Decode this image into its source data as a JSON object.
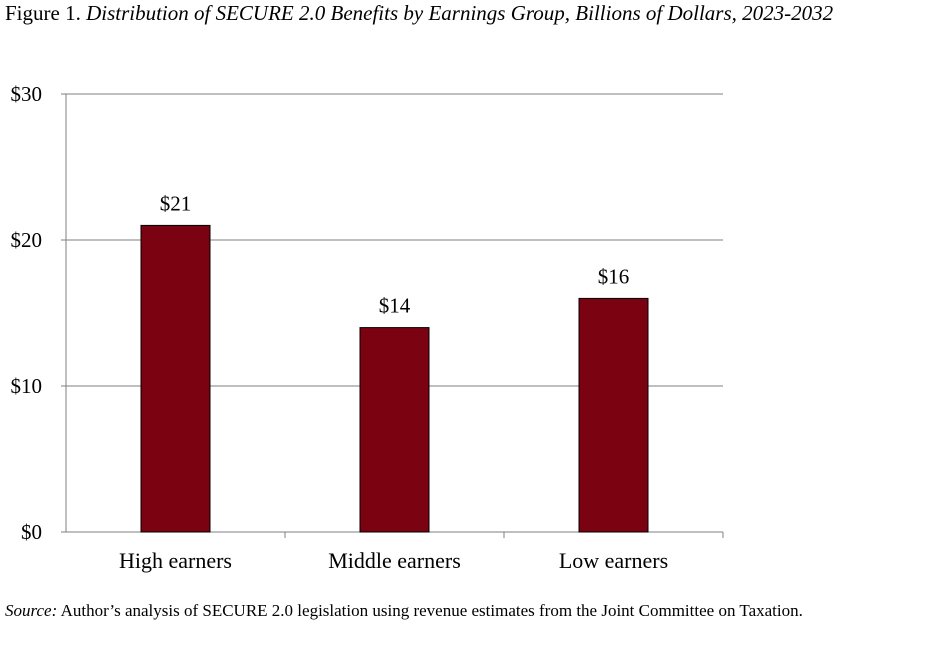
{
  "title": {
    "prefix": "Figure 1.",
    "text": "Distribution of SECURE 2.0 Benefits by Earnings Group, Billions of Dollars, 2023-2032"
  },
  "source": {
    "label": "Source:",
    "text": "Author’s analysis of SECURE 2.0 legislation using revenue estimates from the Joint Committee on Taxation."
  },
  "colors": {
    "bar": "#7b0210",
    "grid": "#7f7f7f"
  },
  "chart_data": {
    "type": "bar",
    "categories": [
      "High earners",
      "Middle earners",
      "Low earners"
    ],
    "values": [
      21,
      14,
      16
    ],
    "data_labels": [
      "$21",
      "$14",
      "$16"
    ],
    "ylim": [
      0,
      30
    ],
    "yticks": [
      0,
      10,
      20,
      30
    ],
    "ytick_labels": [
      "$0",
      "$10",
      "$20",
      "$30"
    ],
    "grid": true,
    "legend": "none"
  }
}
